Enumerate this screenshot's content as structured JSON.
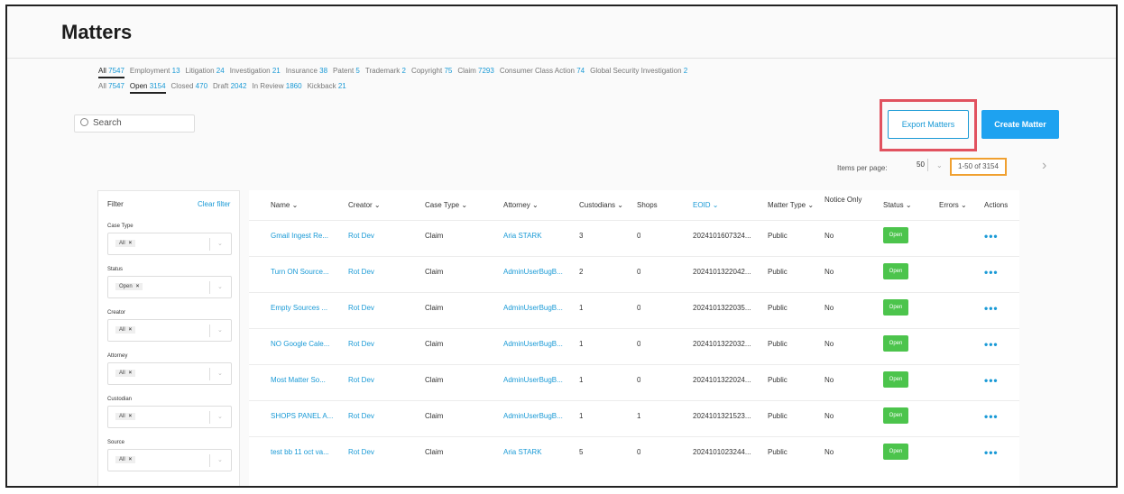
{
  "page": {
    "title": "Matters"
  },
  "case_type_tabs": [
    {
      "label": "All",
      "count": "7547",
      "active": true
    },
    {
      "label": "Employment",
      "count": "13"
    },
    {
      "label": "Litigation",
      "count": "24"
    },
    {
      "label": "Investigation",
      "count": "21"
    },
    {
      "label": "Insurance",
      "count": "38"
    },
    {
      "label": "Patent",
      "count": "5"
    },
    {
      "label": "Trademark",
      "count": "2"
    },
    {
      "label": "Copyright",
      "count": "75"
    },
    {
      "label": "Claim",
      "count": "7293"
    },
    {
      "label": "Consumer Class Action",
      "count": "74"
    },
    {
      "label": "Global Security Investigation",
      "count": "2"
    }
  ],
  "status_tabs": [
    {
      "label": "All",
      "count": "7547"
    },
    {
      "label": "Open",
      "count": "3154",
      "active": true
    },
    {
      "label": "Closed",
      "count": "470"
    },
    {
      "label": "Draft",
      "count": "2042"
    },
    {
      "label": "In Review",
      "count": "1860"
    },
    {
      "label": "Kickback",
      "count": "21"
    }
  ],
  "search": {
    "placeholder": "Search"
  },
  "toolbar": {
    "export_label": "Export Matters",
    "create_label": "Create Matter"
  },
  "pagination": {
    "items_per_page_label": "Items per page:",
    "items_per_page": "50",
    "range": "1-50 of 3154"
  },
  "filter": {
    "title": "Filter",
    "clear_label": "Clear filter",
    "groups": [
      {
        "label": "Case Type",
        "chip": "All"
      },
      {
        "label": "Status",
        "chip": "Open"
      },
      {
        "label": "Creator",
        "chip": "All"
      },
      {
        "label": "Attorney",
        "chip": "All"
      },
      {
        "label": "Custodian",
        "chip": "All"
      },
      {
        "label": "Source",
        "chip": "All"
      }
    ]
  },
  "table": {
    "columns": {
      "name": "Name ⌄",
      "creator": "Creator ⌄",
      "case_type": "Case Type ⌄",
      "attorney": "Attorney ⌄",
      "custodians": "Custodians ⌄",
      "shops": "Shops",
      "eoid": "EOID ⌄",
      "matter_type": "Matter Type ⌄",
      "notice_only": "Notice Only",
      "status": "Status ⌄",
      "errors": "Errors ⌄",
      "actions": "Actions"
    },
    "rows": [
      {
        "name": "Gmail Ingest Re...",
        "creator": "Rot Dev",
        "case_type": "Claim",
        "attorney": "Aria STARK",
        "custodians": "3",
        "shops": "0",
        "eoid": "2024101607324...",
        "matter_type": "Public",
        "notice_only": "No",
        "status": "Open"
      },
      {
        "name": "Turn ON Source...",
        "creator": "Rot Dev",
        "case_type": "Claim",
        "attorney": "AdminUserBugB...",
        "custodians": "2",
        "shops": "0",
        "eoid": "2024101322042...",
        "matter_type": "Public",
        "notice_only": "No",
        "status": "Open"
      },
      {
        "name": "Empty Sources ...",
        "creator": "Rot Dev",
        "case_type": "Claim",
        "attorney": "AdminUserBugB...",
        "custodians": "1",
        "shops": "0",
        "eoid": "2024101322035...",
        "matter_type": "Public",
        "notice_only": "No",
        "status": "Open"
      },
      {
        "name": "NO Google Cale...",
        "creator": "Rot Dev",
        "case_type": "Claim",
        "attorney": "AdminUserBugB...",
        "custodians": "1",
        "shops": "0",
        "eoid": "2024101322032...",
        "matter_type": "Public",
        "notice_only": "No",
        "status": "Open"
      },
      {
        "name": "Most Matter So...",
        "creator": "Rot Dev",
        "case_type": "Claim",
        "attorney": "AdminUserBugB...",
        "custodians": "1",
        "shops": "0",
        "eoid": "2024101322024...",
        "matter_type": "Public",
        "notice_only": "No",
        "status": "Open"
      },
      {
        "name": "SHOPS PANEL A...",
        "creator": "Rot Dev",
        "case_type": "Claim",
        "attorney": "AdminUserBugB...",
        "custodians": "1",
        "shops": "1",
        "eoid": "2024101321523...",
        "matter_type": "Public",
        "notice_only": "No",
        "status": "Open"
      },
      {
        "name": "test bb 11 oct va...",
        "creator": "Rot Dev",
        "case_type": "Claim",
        "attorney": "Aria STARK",
        "custodians": "5",
        "shops": "0",
        "eoid": "2024101023244...",
        "matter_type": "Public",
        "notice_only": "No",
        "status": "Open"
      }
    ]
  },
  "icons": {
    "search": "search-icon",
    "next": "chevron-right-icon",
    "actions": "more-dots-icon",
    "chip_remove": "close-icon",
    "dropdown": "chevron-down-icon"
  },
  "colors": {
    "accent": "#1a9ad6",
    "status_open": "#4cc44c",
    "export_highlight": "#e1525f",
    "range_highlight": "#f0a030"
  }
}
